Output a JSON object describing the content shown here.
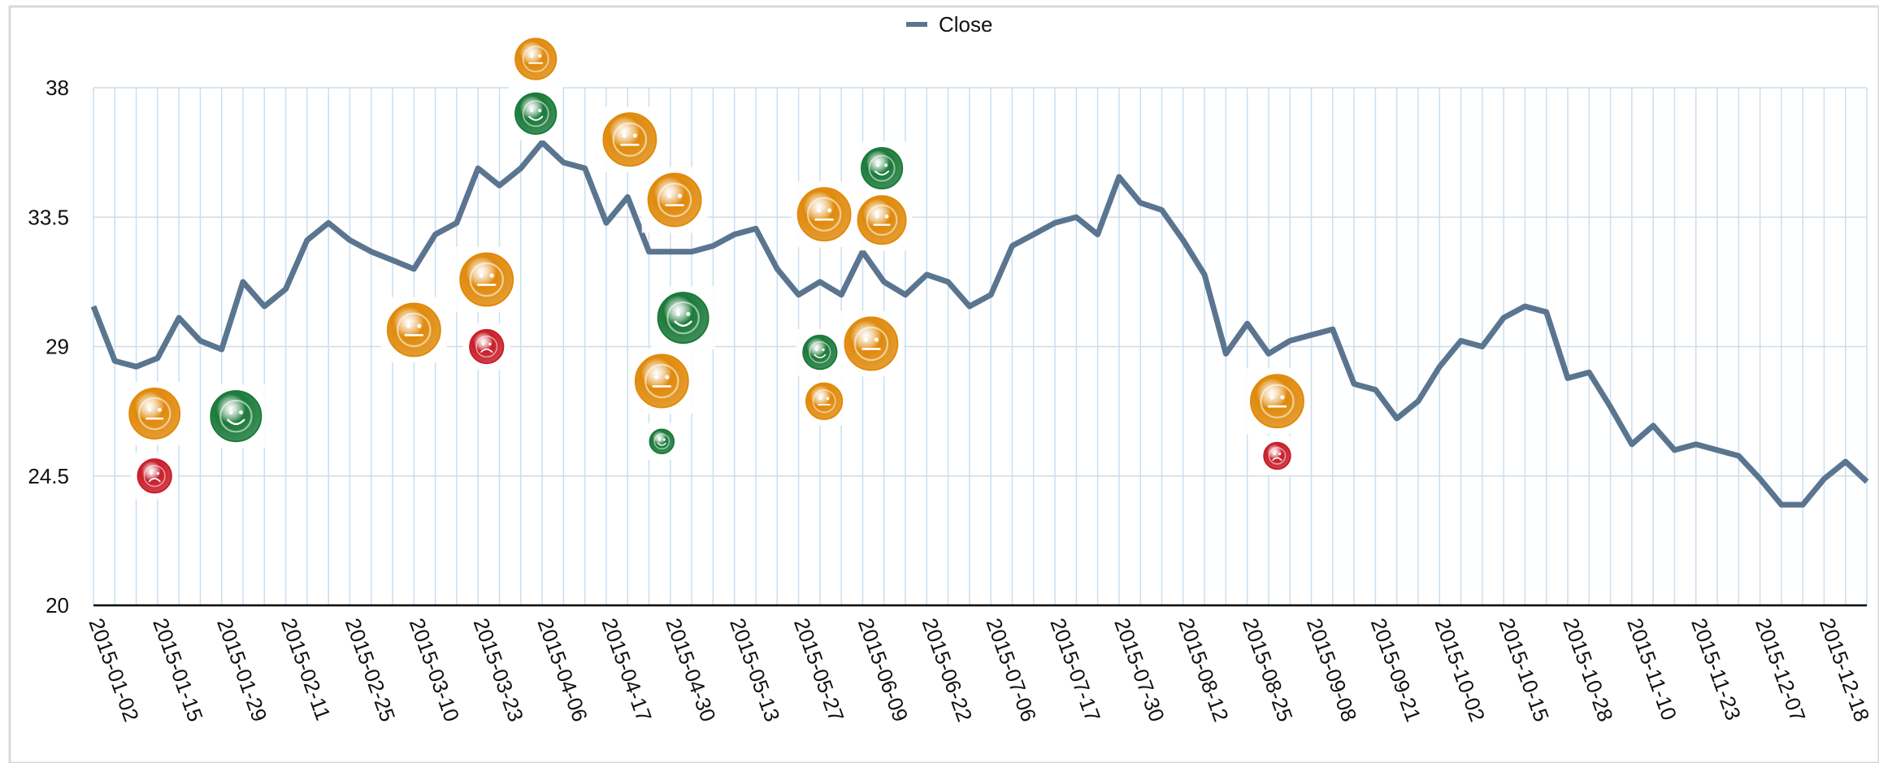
{
  "chart_data": {
    "type": "line",
    "legend": "top",
    "grid": true,
    "categories": [
      "2015-01-02",
      null,
      null,
      "2015-01-15",
      null,
      null,
      "2015-01-29",
      null,
      null,
      "2015-02-11",
      null,
      null,
      "2015-02-25",
      null,
      null,
      "2015-03-10",
      null,
      null,
      "2015-03-23",
      null,
      null,
      "2015-04-06",
      null,
      null,
      "2015-04-17",
      null,
      null,
      "2015-04-30",
      null,
      null,
      "2015-05-13",
      null,
      null,
      "2015-05-27",
      null,
      null,
      "2015-06-09",
      null,
      null,
      "2015-06-22",
      null,
      null,
      "2015-07-06",
      null,
      null,
      "2015-07-17",
      null,
      null,
      "2015-07-30",
      null,
      null,
      "2015-08-12",
      null,
      null,
      "2015-08-25",
      null,
      null,
      "2015-09-08",
      null,
      null,
      "2015-09-21",
      null,
      null,
      "2015-10-02",
      null,
      null,
      "2015-10-15",
      null,
      null,
      "2015-10-28",
      null,
      null,
      "2015-11-10",
      null,
      null,
      "2015-11-23",
      null,
      null,
      "2015-12-07",
      null,
      null,
      "2015-12-18",
      null,
      null
    ],
    "series": [
      {
        "name": "Close",
        "color": "#5a7590",
        "values": [
          30.4,
          28.5,
          28.3,
          28.6,
          30.0,
          29.2,
          28.9,
          31.25,
          30.4,
          31.0,
          32.7,
          33.3,
          32.7,
          32.3,
          32.0,
          31.7,
          32.9,
          33.3,
          35.2,
          34.6,
          35.2,
          36.1,
          35.4,
          35.2,
          33.3,
          34.2,
          32.3,
          32.3,
          32.3,
          32.5,
          32.9,
          33.1,
          31.7,
          30.8,
          31.25,
          30.8,
          32.3,
          31.25,
          30.8,
          31.5,
          31.25,
          30.4,
          30.8,
          32.5,
          32.9,
          33.3,
          33.5,
          32.9,
          34.9,
          34.0,
          33.75,
          32.7,
          31.5,
          28.75,
          29.8,
          28.75,
          29.2,
          29.4,
          29.6,
          27.7,
          27.5,
          26.5,
          27.1,
          28.3,
          29.2,
          29.0,
          30.0,
          30.4,
          30.2,
          27.9,
          28.1,
          26.9,
          25.6,
          26.25,
          25.4,
          25.6,
          25.4,
          25.2,
          24.4,
          23.5,
          23.5,
          24.4,
          25.0,
          24.3
        ]
      }
    ],
    "ylim": [
      20,
      38
    ],
    "yticks": [
      20,
      24.5,
      29,
      33.5,
      38
    ],
    "markers": {
      "x": [
        2.86,
        2.86,
        6.67,
        15.0,
        18.4,
        18.4,
        20.7,
        20.7,
        25.1,
        27.2,
        27.6,
        26.6,
        26.6,
        34.2,
        34.0,
        34.2,
        36.9,
        36.9,
        36.4,
        55.4,
        55.4
      ],
      "y": [
        26.67,
        24.5,
        26.58,
        29.58,
        31.33,
        29.0,
        39.0,
        37.1,
        36.2,
        34.1,
        30.0,
        27.8,
        25.7,
        33.6,
        28.8,
        27.1,
        35.2,
        33.4,
        29.1,
        27.1,
        25.2
      ],
      "size": [
        21,
        14,
        21,
        22,
        22,
        14,
        17,
        17,
        22,
        22,
        21,
        22,
        10,
        22,
        14,
        15,
        17,
        20,
        22,
        22,
        11
      ],
      "face": [
        "neutral",
        "sad",
        "happy",
        "neutral",
        "neutral",
        "sad",
        "neutral",
        "happy",
        "neutral",
        "neutral",
        "happy",
        "neutral",
        "happy",
        "neutral",
        "happy",
        "neutral",
        "happy",
        "neutral",
        "neutral",
        "neutral",
        "sad"
      ],
      "colors": {
        "neutral": "#e08a0c",
        "happy": "#1b7a3a",
        "sad": "#c81f2b"
      }
    }
  }
}
